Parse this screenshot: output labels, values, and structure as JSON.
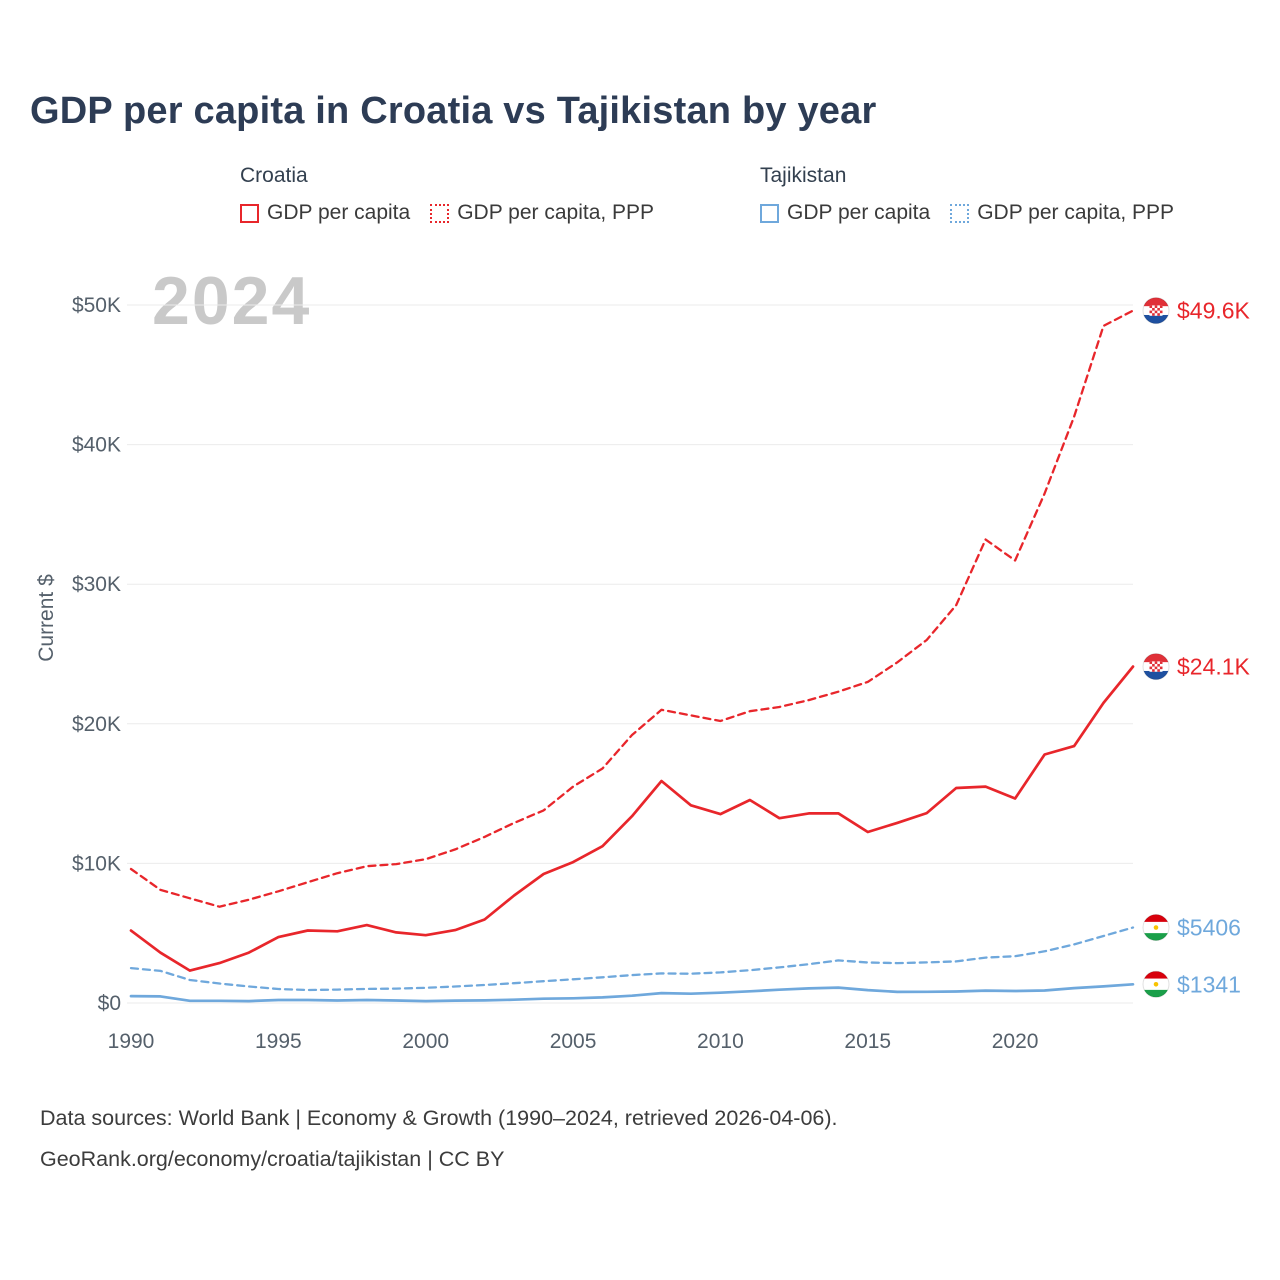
{
  "title": "GDP per capita in Croatia vs Tajikistan by year",
  "watermark": "2024",
  "legend": {
    "groups": [
      {
        "name": "Croatia",
        "items": [
          {
            "label": "GDP per capita",
            "style": "solid",
            "color": "#e8262b"
          },
          {
            "label": "GDP per capita, PPP",
            "style": "dotted",
            "color": "#e8262b"
          }
        ]
      },
      {
        "name": "Tajikistan",
        "items": [
          {
            "label": "GDP per capita",
            "style": "solid",
            "color": "#6fa8dc"
          },
          {
            "label": "GDP per capita, PPP",
            "style": "dotted",
            "color": "#6fa8dc"
          }
        ]
      }
    ]
  },
  "chart_data": {
    "type": "line",
    "title": "GDP per capita in Croatia vs Tajikistan by year",
    "xlabel": "",
    "ylabel": "Current $",
    "ylim": [
      0,
      50000
    ],
    "grid": "horizontal",
    "legend_position": "top",
    "x": [
      1990,
      1991,
      1992,
      1993,
      1994,
      1995,
      1996,
      1997,
      1998,
      1999,
      2000,
      2001,
      2002,
      2003,
      2004,
      2005,
      2006,
      2007,
      2008,
      2009,
      2010,
      2011,
      2012,
      2013,
      2014,
      2015,
      2016,
      2017,
      2018,
      2019,
      2020,
      2021,
      2022,
      2023,
      2024
    ],
    "xticks": [
      1990,
      1995,
      2000,
      2005,
      2010,
      2015,
      2020
    ],
    "yticks": [
      {
        "value": 0,
        "label": "$0"
      },
      {
        "value": 10000,
        "label": "$10K"
      },
      {
        "value": 20000,
        "label": "$20K"
      },
      {
        "value": 30000,
        "label": "$30K"
      },
      {
        "value": 40000,
        "label": "$40K"
      },
      {
        "value": 50000,
        "label": "$50K"
      }
    ],
    "series": [
      {
        "id": "croatia-gdp-ppp",
        "name": "Croatia GDP per capita, PPP",
        "color": "#e8262b",
        "dash": true,
        "flag": "croatia",
        "end_label": "$49.6K",
        "values": [
          9600,
          8100,
          7500,
          6900,
          7400,
          8000,
          8650,
          9300,
          9800,
          9950,
          10300,
          11000,
          11900,
          12900,
          13800,
          15500,
          16800,
          19200,
          21000,
          20600,
          20200,
          20900,
          21200,
          21700,
          22300,
          23000,
          24400,
          26000,
          28500,
          33200,
          31700,
          36500,
          42000,
          48500,
          49600
        ]
      },
      {
        "id": "croatia-gdp",
        "name": "Croatia GDP per capita",
        "color": "#e8262b",
        "dash": false,
        "flag": "croatia",
        "end_label": "$24.1K",
        "values": [
          5185,
          3600,
          2320,
          2860,
          3610,
          4720,
          5195,
          5135,
          5580,
          5060,
          4860,
          5220,
          5980,
          7700,
          9240,
          10090,
          11230,
          13380,
          15900,
          14160,
          13530,
          14540,
          13240,
          13580,
          13590,
          12250,
          12900,
          13600,
          15400,
          15500,
          14650,
          17800,
          18400,
          21500,
          24100
        ]
      },
      {
        "id": "tajikistan-gdp-ppp",
        "name": "Tajikistan GDP per capita, PPP",
        "color": "#6fa8dc",
        "dash": true,
        "flag": "tajikistan",
        "end_label": "$5406",
        "values": [
          2500,
          2300,
          1650,
          1400,
          1180,
          1000,
          930,
          960,
          1010,
          1030,
          1090,
          1180,
          1290,
          1420,
          1560,
          1700,
          1840,
          2000,
          2120,
          2100,
          2190,
          2350,
          2550,
          2780,
          3050,
          2900,
          2860,
          2910,
          2980,
          3250,
          3350,
          3700,
          4200,
          4800,
          5406
        ]
      },
      {
        "id": "tajikistan-gdp",
        "name": "Tajikistan GDP per capita",
        "color": "#6fa8dc",
        "dash": false,
        "flag": "tajikistan",
        "end_label": "$1341",
        "values": [
          497,
          476,
          158,
          157,
          136,
          213,
          216,
          178,
          215,
          178,
          139,
          169,
          188,
          237,
          310,
          337,
          401,
          520,
          708,
          668,
          740,
          837,
          955,
          1047,
          1104,
          926,
          796,
          801,
          827,
          891,
          859,
          897,
          1068,
          1189,
          1341
        ]
      }
    ]
  },
  "footer": {
    "line1": "Data sources: World Bank | Economy & Growth (1990–2024, retrieved 2026-04-06).",
    "line2": "GeoRank.org/economy/croatia/tajikistan | CC BY"
  }
}
